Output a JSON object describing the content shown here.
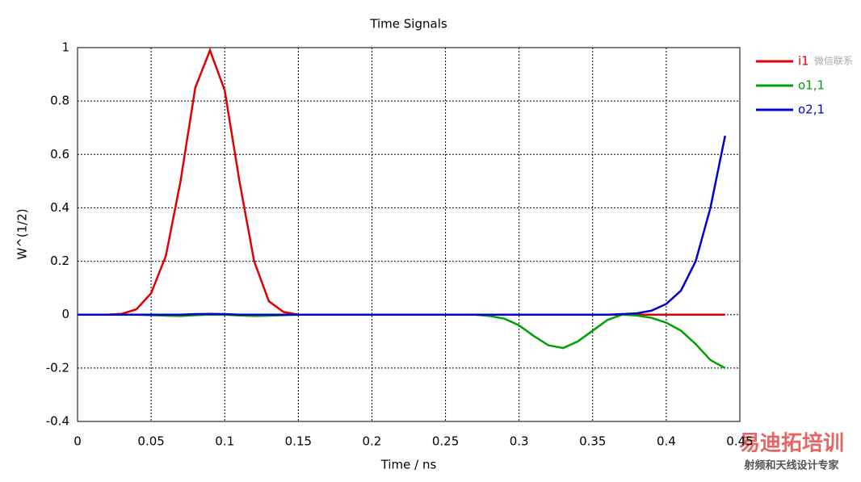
{
  "chart_data": {
    "type": "line",
    "title": "Time Signals",
    "x_label": "Time / ns",
    "y_label": "W^(1/2)",
    "x": [
      0,
      0.01,
      0.02,
      0.03,
      0.04,
      0.05,
      0.06,
      0.07,
      0.08,
      0.09,
      0.1,
      0.11,
      0.12,
      0.13,
      0.14,
      0.15,
      0.16,
      0.17,
      0.18,
      0.19,
      0.2,
      0.21,
      0.22,
      0.23,
      0.24,
      0.25,
      0.26,
      0.27,
      0.28,
      0.29,
      0.3,
      0.31,
      0.32,
      0.33,
      0.34,
      0.35,
      0.36,
      0.37,
      0.38,
      0.39,
      0.4,
      0.41,
      0.42,
      0.43,
      0.44
    ],
    "series": [
      {
        "name": "i1",
        "color": "#e00000",
        "values": [
          0,
          0,
          0,
          0.003,
          0.02,
          0.08,
          0.22,
          0.5,
          0.85,
          0.99,
          0.84,
          0.5,
          0.2,
          0.05,
          0.01,
          0,
          0,
          0,
          0,
          0,
          0,
          0,
          0,
          0,
          0,
          0,
          0,
          0,
          0,
          0,
          0,
          0,
          0,
          0,
          0,
          0,
          0,
          0,
          0,
          0,
          0,
          0,
          0,
          0,
          0
        ]
      },
      {
        "name": "o1,1",
        "color": "#00a000",
        "values": [
          0,
          0,
          0,
          0,
          0,
          -0.002,
          -0.004,
          -0.005,
          -0.002,
          0,
          0,
          -0.003,
          -0.005,
          -0.004,
          -0.002,
          0,
          0,
          0,
          0,
          0,
          0,
          0,
          0,
          0,
          0,
          0,
          0,
          0,
          -0.005,
          -0.015,
          -0.04,
          -0.08,
          -0.115,
          -0.125,
          -0.1,
          -0.06,
          -0.02,
          0,
          -0.003,
          -0.012,
          -0.03,
          -0.06,
          -0.11,
          -0.17,
          -0.2
        ]
      },
      {
        "name": "o2,1",
        "color": "#0000d0",
        "values": [
          0,
          0,
          0,
          0,
          0,
          0,
          0,
          0,
          0.002,
          0.003,
          0.002,
          0,
          0,
          0,
          0,
          0,
          0,
          0,
          0,
          0,
          0,
          0,
          0,
          0,
          0,
          0,
          0,
          0,
          0,
          0,
          0,
          0,
          0,
          0,
          0,
          0,
          0,
          0.002,
          0.005,
          0.015,
          0.04,
          0.09,
          0.2,
          0.4,
          0.67
        ]
      }
    ],
    "xlim": [
      0,
      0.45
    ],
    "ylim": [
      -0.4,
      1
    ],
    "xticks": [
      0,
      0.05,
      0.1,
      0.15,
      0.2,
      0.25,
      0.3,
      0.35,
      0.4,
      0.45
    ],
    "yticks": [
      -0.4,
      -0.2,
      0,
      0.2,
      0.4,
      0.6,
      0.8,
      1
    ],
    "grid": true,
    "legend": "right",
    "watermarks": [
      "微信联系",
      "易迪拓培训",
      "射频和天线设计专家"
    ]
  }
}
